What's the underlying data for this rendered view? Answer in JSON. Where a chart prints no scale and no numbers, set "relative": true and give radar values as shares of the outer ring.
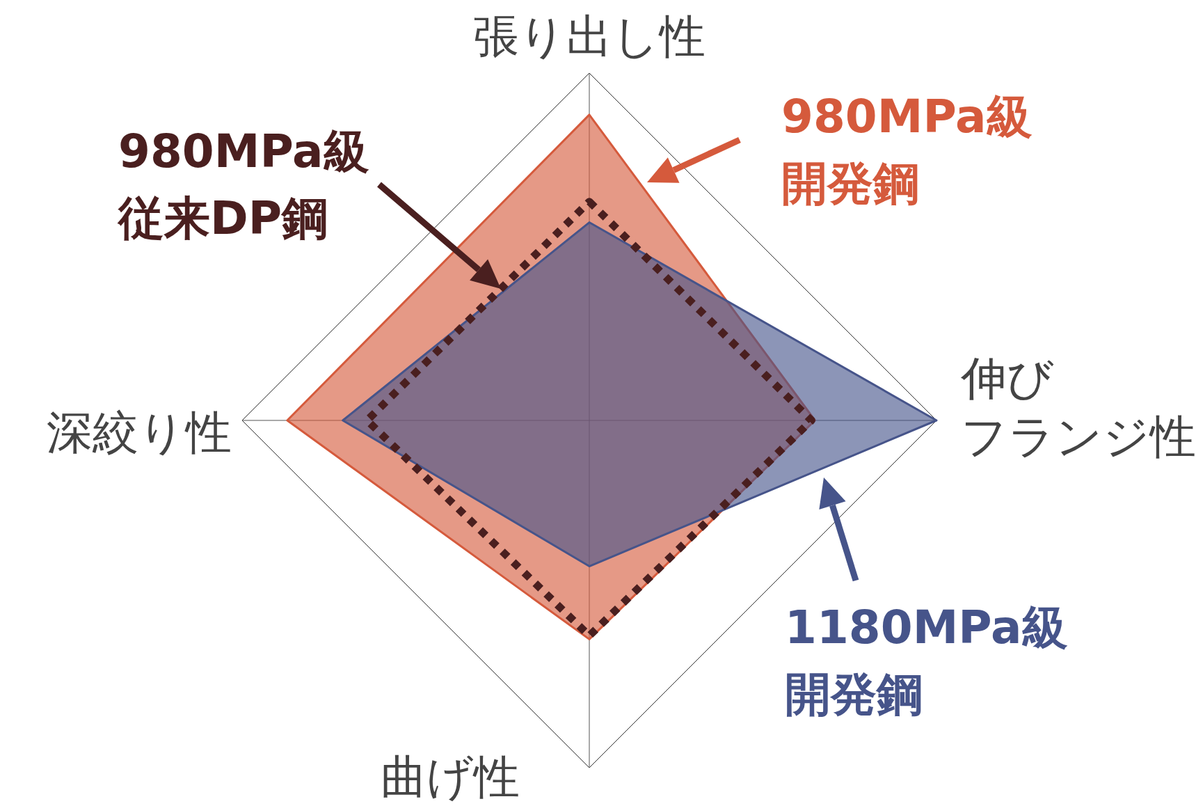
{
  "chart_data": {
    "type": "radar",
    "relative": true,
    "categories": [
      "張り出し性",
      "伸びフランジ性",
      "曲げ性",
      "深絞り性"
    ],
    "series": [
      {
        "name": "980MPa級開発鋼",
        "color": "#d55a3c",
        "line_style": "solid",
        "values": [
          0.88,
          0.65,
          0.63,
          0.87
        ]
      },
      {
        "name": "1180MPa級開発鋼",
        "color": "#46548a",
        "line_style": "solid",
        "values": [
          0.57,
          1.0,
          0.42,
          0.71
        ]
      },
      {
        "name": "980MPa級従来DP鋼",
        "color": "#4a1f1f",
        "line_style": "dotted",
        "values": [
          0.63,
          0.64,
          0.62,
          0.64
        ]
      }
    ],
    "marker": "none"
  }
}
